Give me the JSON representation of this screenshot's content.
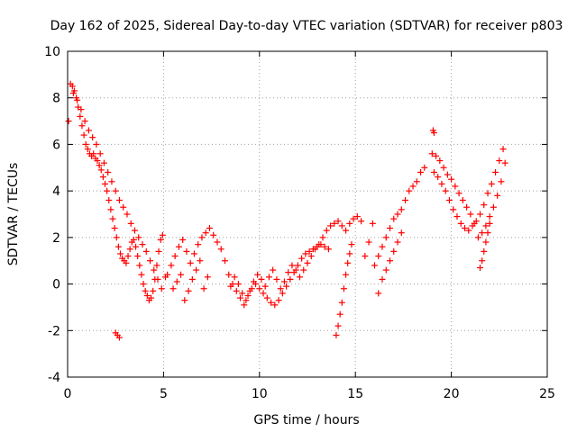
{
  "chart_data": {
    "type": "scatter",
    "title": "Day 162 of 2025, Sidereal Day-to-day VTEC variation (SDTVAR) for receiver p803",
    "xlabel": "GPS time / hours",
    "ylabel": "SDTVAR / TECUs",
    "xlim": [
      0,
      25
    ],
    "ylim": [
      -4,
      10
    ],
    "xticks": [
      0,
      5,
      10,
      15,
      20,
      25
    ],
    "yticks": [
      -4,
      -2,
      0,
      2,
      4,
      6,
      8,
      10
    ],
    "grid": true,
    "marker": "+",
    "color": "#ff0000",
    "series": [
      {
        "name": "SDTVAR",
        "x": [
          0.05,
          0.15,
          0.25,
          0.35,
          0.45,
          0.55,
          0.65,
          0.75,
          0.85,
          0.95,
          1.05,
          1.15,
          1.25,
          1.35,
          1.45,
          1.55,
          1.65,
          1.75,
          1.85,
          1.95,
          2.05,
          2.15,
          2.25,
          2.35,
          2.45,
          2.55,
          2.65,
          2.75,
          2.85,
          2.95,
          3.05,
          3.15,
          3.25,
          3.35,
          3.45,
          3.55,
          3.65,
          3.75,
          3.85,
          3.95,
          4.05,
          4.15,
          4.25,
          4.35,
          4.45,
          4.55,
          4.65,
          4.75,
          4.85,
          4.95,
          0.3,
          0.5,
          0.7,
          0.9,
          1.1,
          1.3,
          1.5,
          1.7,
          1.9,
          2.1,
          2.3,
          2.5,
          2.7,
          2.9,
          3.1,
          3.3,
          3.5,
          3.7,
          3.9,
          4.1,
          4.3,
          4.5,
          4.7,
          4.9,
          5.1,
          2.5,
          2.6,
          2.7,
          5.2,
          5.4,
          5.6,
          5.8,
          6.0,
          6.2,
          6.4,
          6.6,
          6.8,
          7.0,
          7.2,
          7.4,
          7.6,
          7.8,
          8.0,
          5.5,
          5.7,
          5.9,
          6.1,
          6.3,
          6.5,
          6.7,
          6.9,
          7.1,
          7.3,
          8.2,
          8.4,
          8.6,
          8.8,
          9.0,
          9.2,
          9.4,
          9.6,
          9.8,
          10.0,
          10.2,
          10.4,
          10.6,
          10.8,
          11.0,
          11.2,
          11.4,
          11.6,
          11.8,
          12.0,
          12.2,
          12.4,
          12.6,
          12.8,
          13.0,
          13.2,
          13.4,
          13.6,
          8.5,
          8.7,
          8.9,
          9.1,
          9.3,
          9.5,
          9.7,
          9.9,
          10.1,
          10.3,
          10.5,
          10.7,
          10.9,
          11.1,
          11.3,
          11.5,
          11.7,
          11.9,
          12.1,
          12.3,
          12.5,
          12.7,
          12.9,
          13.1,
          13.3,
          13.5,
          13.7,
          13.9,
          14.1,
          14.3,
          14.5,
          14.7,
          14.9,
          15.1,
          15.3,
          15.5,
          15.7,
          15.9,
          14.0,
          14.1,
          14.2,
          14.3,
          14.4,
          14.5,
          14.6,
          14.7,
          14.8,
          16.0,
          16.2,
          16.4,
          16.6,
          16.8,
          17.0,
          17.2,
          17.4,
          17.6,
          17.8,
          18.0,
          18.2,
          18.4,
          18.6,
          16.2,
          16.4,
          16.6,
          16.8,
          17.0,
          17.2,
          17.4,
          19.0,
          19.2,
          19.4,
          19.6,
          19.8,
          20.0,
          20.2,
          20.4,
          20.6,
          20.8,
          21.0,
          21.2,
          21.4,
          21.6,
          21.8,
          22.0,
          22.2,
          22.4,
          22.6,
          22.8,
          19.1,
          19.3,
          19.5,
          19.7,
          19.9,
          20.1,
          20.3,
          20.5,
          20.7,
          20.9,
          21.1,
          21.3,
          21.5,
          21.7,
          21.9,
          22.1,
          22.3,
          22.5,
          22.7,
          21.5,
          21.6,
          21.7,
          21.8,
          21.9,
          22.0,
          19.05,
          19.1
        ],
        "y": [
          7.0,
          8.6,
          8.5,
          8.3,
          8.0,
          7.6,
          7.2,
          6.8,
          6.4,
          6.0,
          5.8,
          5.6,
          5.5,
          5.6,
          5.4,
          5.3,
          5.1,
          4.9,
          4.6,
          4.3,
          4.0,
          3.6,
          3.2,
          2.8,
          2.4,
          2.0,
          1.6,
          1.3,
          1.1,
          1.0,
          0.9,
          1.2,
          1.5,
          1.8,
          1.9,
          1.6,
          1.2,
          0.8,
          0.4,
          0.0,
          -0.3,
          -0.5,
          -0.7,
          -0.6,
          -0.3,
          0.2,
          0.8,
          1.4,
          1.9,
          2.1,
          8.2,
          7.9,
          7.5,
          7.0,
          6.6,
          6.3,
          6.0,
          5.6,
          5.2,
          4.8,
          4.4,
          4.0,
          3.6,
          3.3,
          3.0,
          2.6,
          2.3,
          2.0,
          1.7,
          1.4,
          1.0,
          0.6,
          0.2,
          -0.2,
          0.3,
          -2.1,
          -2.2,
          -2.3,
          0.4,
          0.8,
          1.2,
          1.6,
          1.9,
          1.4,
          0.9,
          1.3,
          1.7,
          2.0,
          2.2,
          2.4,
          2.1,
          1.8,
          1.5,
          -0.2,
          0.1,
          0.4,
          -0.7,
          -0.3,
          0.2,
          0.6,
          1.0,
          -0.2,
          0.3,
          1.0,
          0.4,
          0.0,
          -0.3,
          -0.6,
          -0.9,
          -0.5,
          -0.2,
          0.0,
          -0.2,
          -0.4,
          -0.6,
          -0.8,
          -0.9,
          -0.7,
          -0.4,
          -0.1,
          0.2,
          0.5,
          0.8,
          1.1,
          1.3,
          1.4,
          1.5,
          1.6,
          1.7,
          1.6,
          1.5,
          -0.1,
          0.3,
          0.0,
          -0.4,
          -0.7,
          -0.3,
          0.1,
          0.4,
          0.2,
          -0.1,
          0.3,
          0.6,
          0.2,
          -0.2,
          0.1,
          0.5,
          0.8,
          0.6,
          0.3,
          0.6,
          0.9,
          1.2,
          1.5,
          1.7,
          2.0,
          2.3,
          2.5,
          2.6,
          2.7,
          2.5,
          2.3,
          2.6,
          2.8,
          2.9,
          2.7,
          1.2,
          1.8,
          2.6,
          -2.2,
          -1.8,
          -1.3,
          -0.8,
          -0.2,
          0.4,
          0.9,
          1.3,
          1.7,
          0.8,
          1.2,
          1.6,
          2.0,
          2.4,
          2.8,
          3.0,
          3.2,
          3.6,
          4.0,
          4.2,
          4.4,
          4.8,
          5.0,
          -0.4,
          0.2,
          0.6,
          1.0,
          1.4,
          1.8,
          2.2,
          5.6,
          5.5,
          5.3,
          5.0,
          4.7,
          4.5,
          4.2,
          3.9,
          3.6,
          3.3,
          3.0,
          2.6,
          2.0,
          2.2,
          2.5,
          2.9,
          3.3,
          3.8,
          4.4,
          5.2,
          4.8,
          4.6,
          4.3,
          4.0,
          3.6,
          3.2,
          2.9,
          2.6,
          2.4,
          2.3,
          2.5,
          2.7,
          3.0,
          3.4,
          3.9,
          4.3,
          4.8,
          5.3,
          5.8,
          0.7,
          1.0,
          1.4,
          1.8,
          2.2,
          2.6,
          6.6,
          6.5
        ]
      }
    ]
  }
}
